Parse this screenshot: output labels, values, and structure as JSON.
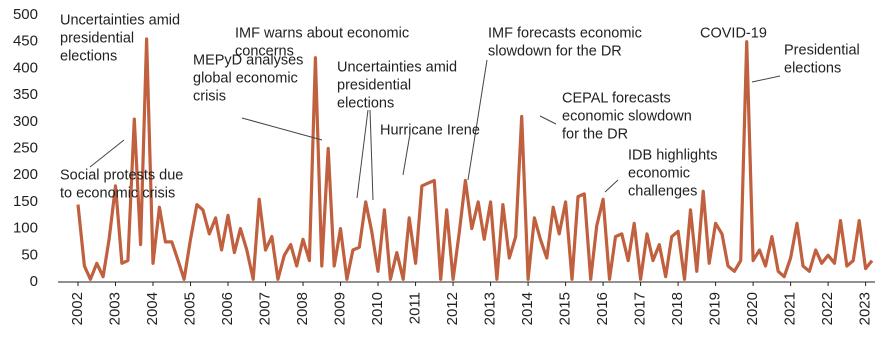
{
  "chart_data": {
    "type": "line",
    "color": "#c0603f",
    "x": [
      2002,
      2002.17,
      2002.33,
      2002.5,
      2002.67,
      2002.83,
      2003,
      2003.17,
      2003.33,
      2003.5,
      2003.67,
      2003.83,
      2004,
      2004.17,
      2004.33,
      2004.5,
      2004.67,
      2004.83,
      2005,
      2005.17,
      2005.33,
      2005.5,
      2005.67,
      2005.83,
      2006,
      2006.17,
      2006.33,
      2006.5,
      2006.67,
      2006.83,
      2007,
      2007.17,
      2007.33,
      2007.5,
      2007.67,
      2007.83,
      2008,
      2008.17,
      2008.33,
      2008.5,
      2008.67,
      2008.83,
      2009,
      2009.17,
      2009.33,
      2009.5,
      2009.67,
      2009.83,
      2010,
      2010.17,
      2010.33,
      2010.5,
      2010.67,
      2010.83,
      2011,
      2011.17,
      2011.33,
      2011.5,
      2011.67,
      2011.83,
      2012,
      2012.17,
      2012.33,
      2012.5,
      2012.67,
      2012.83,
      2013,
      2013.17,
      2013.33,
      2013.5,
      2013.67,
      2013.83,
      2014,
      2014.17,
      2014.33,
      2014.5,
      2014.67,
      2014.83,
      2015,
      2015.17,
      2015.33,
      2015.5,
      2015.67,
      2015.83,
      2016,
      2016.17,
      2016.33,
      2016.5,
      2016.67,
      2016.83,
      2017,
      2017.17,
      2017.33,
      2017.5,
      2017.67,
      2017.83,
      2018,
      2018.17,
      2018.33,
      2018.5,
      2018.67,
      2018.83,
      2019,
      2019.17,
      2019.33,
      2019.5,
      2019.67,
      2019.83,
      2020,
      2020.17,
      2020.33,
      2020.5,
      2020.67,
      2020.83,
      2021,
      2021.17,
      2021.33,
      2021.5,
      2021.67,
      2021.83,
      2022,
      2022.17,
      2022.33,
      2022.5,
      2022.67,
      2022.83,
      2023,
      2023.17
    ],
    "values": [
      145,
      30,
      5,
      35,
      10,
      80,
      180,
      35,
      40,
      305,
      70,
      455,
      35,
      140,
      75,
      75,
      40,
      5,
      80,
      145,
      135,
      90,
      120,
      60,
      125,
      55,
      100,
      60,
      5,
      155,
      60,
      85,
      5,
      50,
      70,
      30,
      80,
      40,
      420,
      30,
      250,
      30,
      100,
      5,
      60,
      65,
      150,
      95,
      20,
      135,
      5,
      55,
      5,
      120,
      35,
      180,
      185,
      190,
      5,
      135,
      5,
      95,
      190,
      100,
      150,
      80,
      150,
      5,
      145,
      45,
      85,
      310,
      5,
      120,
      80,
      45,
      140,
      90,
      150,
      5,
      160,
      165,
      5,
      105,
      155,
      5,
      85,
      90,
      40,
      110,
      5,
      90,
      40,
      70,
      10,
      85,
      95,
      5,
      135,
      20,
      170,
      35,
      110,
      90,
      30,
      20,
      40,
      450,
      40,
      60,
      30,
      85,
      20,
      10,
      45,
      110,
      30,
      20,
      60,
      35,
      50,
      35,
      115,
      30,
      40,
      115,
      25,
      40
    ],
    "xlim": [
      2001.8,
      2023.25
    ],
    "ylim": [
      0,
      500
    ],
    "xticks": [
      2002,
      2003,
      2004,
      2005,
      2006,
      2007,
      2008,
      2009,
      2010,
      2011,
      2012,
      2013,
      2014,
      2015,
      2016,
      2017,
      2018,
      2019,
      2020,
      2021,
      2022,
      2023
    ],
    "yticks": [
      0,
      50,
      100,
      150,
      200,
      250,
      300,
      350,
      400,
      450,
      500
    ],
    "annotations": [
      [
        "Uncertainties amid",
        "presidential",
        "elections"
      ],
      [
        "IMF warns about economic",
        "concerns"
      ],
      [
        "MEPyD analyses",
        "global economic",
        "crisis"
      ],
      [
        "Uncertainties amid",
        "presidential",
        "elections"
      ],
      [
        "IMF forecasts economic",
        "slowdown for the DR"
      ],
      [
        "COVID-19"
      ],
      [
        "Presidential",
        "elections"
      ],
      [
        "Hurricane Irene"
      ],
      [
        "CEPAL forecasts",
        "economic slowdown",
        "for the DR"
      ],
      [
        "Social protests due",
        "to economic crisis"
      ],
      [
        "IDB highlights",
        "economic",
        "challenges"
      ]
    ]
  }
}
